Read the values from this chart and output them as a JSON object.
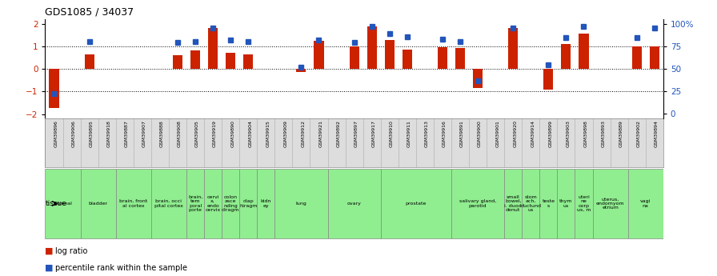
{
  "title": "GDS1085 / 34037",
  "samples": [
    "GSM39896",
    "GSM39906",
    "GSM39895",
    "GSM39918",
    "GSM39887",
    "GSM39907",
    "GSM39888",
    "GSM39908",
    "GSM39905",
    "GSM39919",
    "GSM39890",
    "GSM39904",
    "GSM39915",
    "GSM39909",
    "GSM39912",
    "GSM39921",
    "GSM39892",
    "GSM39897",
    "GSM39917",
    "GSM39910",
    "GSM39911",
    "GSM39913",
    "GSM39916",
    "GSM39891",
    "GSM39900",
    "GSM39901",
    "GSM39920",
    "GSM39914",
    "GSM39899",
    "GSM39903",
    "GSM39898",
    "GSM39893",
    "GSM39889",
    "GSM39902",
    "GSM39894"
  ],
  "log_ratio": [
    -1.72,
    0.0,
    0.65,
    0.0,
    0.0,
    0.0,
    0.0,
    0.62,
    0.83,
    1.82,
    0.7,
    0.65,
    0.0,
    0.0,
    -0.15,
    1.25,
    0.0,
    1.0,
    1.88,
    1.28,
    0.85,
    0.0,
    0.95,
    0.92,
    -0.85,
    0.0,
    1.82,
    0.0,
    -0.9,
    1.1,
    1.55,
    0.0,
    0.0,
    1.0,
    1.0
  ],
  "pct_rank_y": [
    -1.08,
    0.0,
    1.22,
    0.0,
    0.0,
    0.0,
    0.0,
    1.18,
    1.22,
    1.82,
    1.28,
    1.22,
    0.0,
    0.0,
    0.08,
    1.28,
    0.0,
    1.18,
    1.88,
    1.58,
    1.42,
    0.0,
    1.32,
    1.22,
    -0.52,
    0.0,
    1.82,
    0.0,
    0.18,
    1.38,
    1.88,
    0.0,
    0.0,
    1.38,
    1.82
  ],
  "bar_color": "#CC2200",
  "dot_color": "#2255BB",
  "tissue_color": "#90EE90",
  "tissue_labels": [
    {
      "text": "adrenal",
      "start": 0,
      "end": 2
    },
    {
      "text": "bladder",
      "start": 2,
      "end": 4
    },
    {
      "text": "brain, front\nal cortex",
      "start": 4,
      "end": 6
    },
    {
      "text": "brain, occi\npital cortex",
      "start": 6,
      "end": 8
    },
    {
      "text": "brain,\ntem\nporal\nporte",
      "start": 8,
      "end": 9
    },
    {
      "text": "cervi\nx,\nendo\ncervix",
      "start": 9,
      "end": 10
    },
    {
      "text": "colon\nasce\nnding\ndiragm",
      "start": 10,
      "end": 11
    },
    {
      "text": "diap\nhiragm",
      "start": 11,
      "end": 12
    },
    {
      "text": "kidn\ney",
      "start": 12,
      "end": 13
    },
    {
      "text": "lung",
      "start": 13,
      "end": 16
    },
    {
      "text": "ovary",
      "start": 16,
      "end": 19
    },
    {
      "text": "prostate",
      "start": 19,
      "end": 23
    },
    {
      "text": "salivary gland,\nparotid",
      "start": 23,
      "end": 26
    },
    {
      "text": "small\nbowel,\ni. duod\ndenut",
      "start": 26,
      "end": 27
    },
    {
      "text": "stom\nach,\nductund\nus",
      "start": 27,
      "end": 28
    },
    {
      "text": "teste\ns",
      "start": 28,
      "end": 29
    },
    {
      "text": "thym\nus",
      "start": 29,
      "end": 30
    },
    {
      "text": "uteri\nne\ncorp\nus, m",
      "start": 30,
      "end": 31
    },
    {
      "text": "uterus,\nendomyom\netrium",
      "start": 31,
      "end": 33
    },
    {
      "text": "vagi\nna",
      "start": 33,
      "end": 35
    }
  ],
  "ylim": [
    -2.2,
    2.2
  ],
  "yticks_left": [
    -2,
    -1,
    0,
    1,
    2
  ],
  "yticks_right_vals": [
    0,
    25,
    50,
    75,
    100
  ],
  "yticks_right_labels": [
    "0",
    "25",
    "50",
    "75",
    "100%"
  ]
}
